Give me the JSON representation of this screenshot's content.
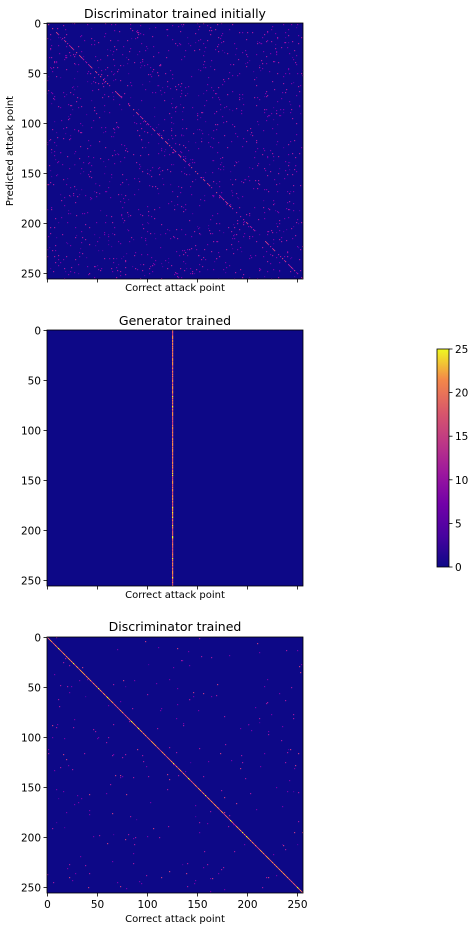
{
  "chart_data": [
    {
      "type": "heatmap",
      "title": "Discriminator trained initially",
      "xlabel": "Correct attack point",
      "ylabel": "Predicted attack point",
      "xlim": [
        0,
        255
      ],
      "ylim": [
        255,
        0
      ],
      "x_tick_labels_shown": false,
      "colormap": "plasma",
      "pattern": "faint diagonal (predicted = correct) with widely scattered off-diagonal predictions",
      "yticks": [
        "0",
        "50",
        "100",
        "150",
        "200",
        "250"
      ]
    },
    {
      "type": "heatmap",
      "title": "Generator trained",
      "xlabel": "Correct attack point",
      "xlim": [
        0,
        255
      ],
      "ylim": [
        255,
        0
      ],
      "x_tick_labels_shown": false,
      "colormap": "plasma",
      "pattern": "single vertical line: all predictions fall in column 125",
      "collapsed_column": 125,
      "yticks": [
        "0",
        "50",
        "100",
        "150",
        "200",
        "250"
      ]
    },
    {
      "type": "heatmap",
      "title": "Discriminator trained",
      "xlabel": "Correct attack point",
      "xlim": [
        0,
        255
      ],
      "ylim": [
        255,
        0
      ],
      "x_tick_labels_shown": true,
      "colormap": "plasma",
      "pattern": "strong diagonal (predicted = correct) with sparse off-diagonal noise",
      "xticks": [
        "0",
        "50",
        "100",
        "150",
        "200",
        "250"
      ],
      "yticks": [
        "0",
        "50",
        "100",
        "150",
        "200",
        "250"
      ]
    },
    {
      "type": "colorbar",
      "range": [
        0,
        25
      ],
      "ticks": [
        "0",
        "5",
        "10",
        "15",
        "20",
        "25"
      ],
      "colormap": "plasma"
    }
  ]
}
